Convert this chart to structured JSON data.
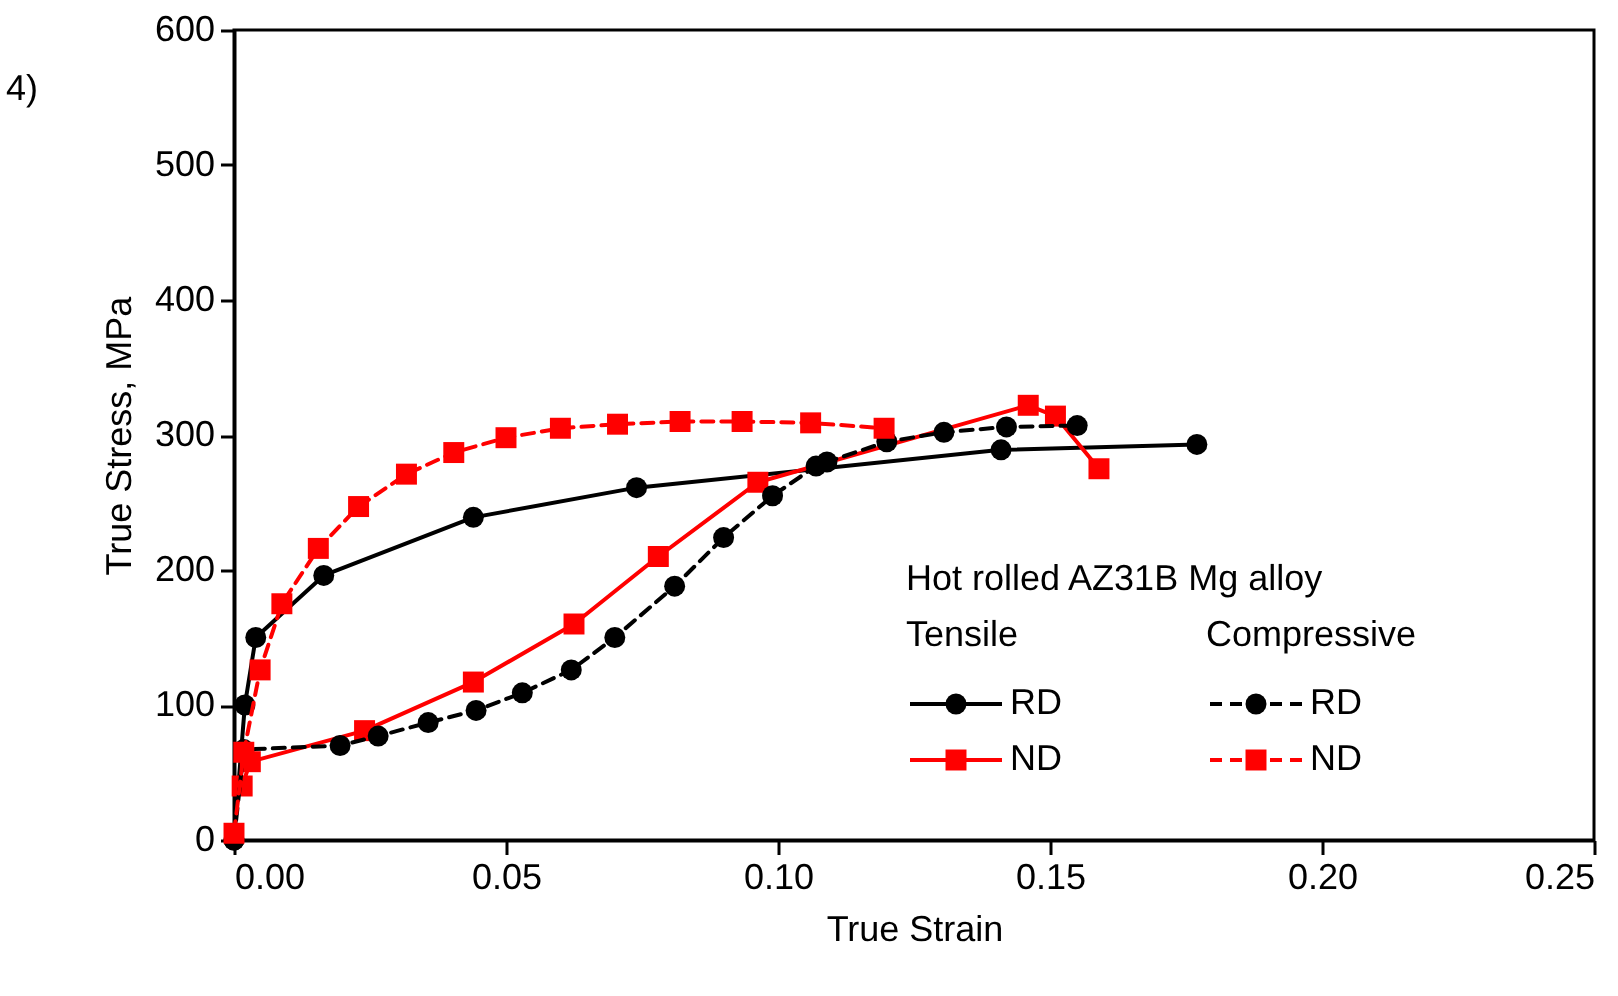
{
  "chart_data": {
    "type": "line",
    "xlabel": "True Strain",
    "ylabel": "True Stress, MPa",
    "legend_title": "Hot rolled AZ31B Mg alloy",
    "annotations": [
      "4)",
      "Tensile",
      "Compressive"
    ],
    "xlim": [
      0,
      0.25
    ],
    "ylim": [
      0,
      600
    ],
    "xticks": [
      {
        "value": 0,
        "label": "0.00"
      },
      {
        "value": 0.05,
        "label": "0.05"
      },
      {
        "value": 0.1,
        "label": "0.10"
      },
      {
        "value": 0.15,
        "label": "0.15"
      },
      {
        "value": 0.2,
        "label": "0.20"
      },
      {
        "value": 0.25,
        "label": "0.25"
      }
    ],
    "yticks": [
      0,
      100,
      200,
      300,
      400,
      500,
      600
    ],
    "grid": false,
    "legend": "bottom right",
    "series": [
      {
        "name": "RD",
        "color": "#000000",
        "marker": "circle",
        "line_style": "solid",
        "x": [
          0,
          0.002,
          0.004,
          0.0165,
          0.044,
          0.074,
          0.141,
          0.177
        ],
        "values": [
          0,
          100,
          150,
          196,
          239,
          261,
          289,
          293
        ]
      },
      {
        "name": "ND",
        "color": "#ff0000",
        "marker": "square",
        "line_style": "solid",
        "x": [
          0.0015,
          0.003,
          0.024,
          0.044,
          0.0625,
          0.078,
          0.0963,
          0.146,
          0.151,
          0.159
        ],
        "values": [
          40,
          58,
          81,
          117,
          160,
          210,
          265,
          322,
          314,
          275
        ]
      },
      {
        "name": "RD",
        "color": "#000000",
        "marker": "circle",
        "line_style": "dashed",
        "x": [
          0,
          0.0018,
          0.0195,
          0.0265,
          0.0357,
          0.0445,
          0.053,
          0.062,
          0.07,
          0.081,
          0.09,
          0.099,
          0.107,
          0.109,
          0.12,
          0.1305,
          0.142,
          0.155
        ],
        "values": [
          0,
          67,
          70,
          77,
          87,
          96,
          109,
          126,
          150,
          188,
          224,
          255,
          277,
          280,
          295,
          302,
          306,
          307
        ]
      },
      {
        "name": "ND",
        "color": "#ff0000",
        "marker": "square",
        "line_style": "dashed",
        "x": [
          0,
          0.0018,
          0.0048,
          0.0088,
          0.0155,
          0.0229,
          0.0317,
          0.0404,
          0.05,
          0.06,
          0.0705,
          0.082,
          0.0934,
          0.106,
          0.1195
        ],
        "values": [
          5,
          65,
          126,
          175,
          216,
          247,
          271,
          287,
          298,
          305,
          308,
          310,
          310,
          309,
          305
        ]
      }
    ]
  }
}
